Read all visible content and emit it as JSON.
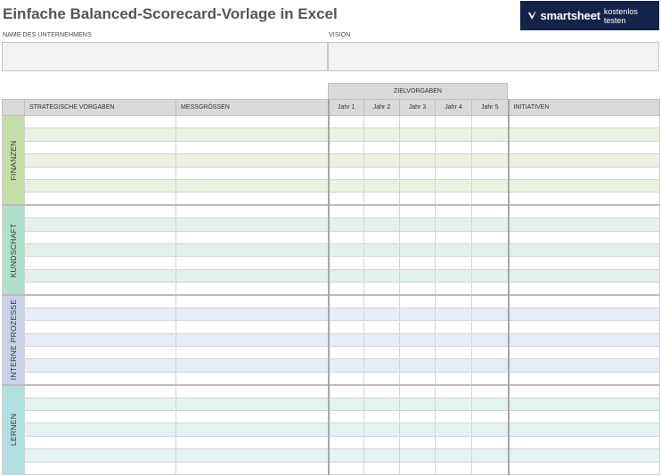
{
  "title": "Einfache Balanced-Scorecard-Vorlage in Excel",
  "banner": {
    "brand": "smartsheet",
    "cta": "kostenlos testen",
    "bg_color": "#13234a",
    "icon": "smartsheet-check-icon"
  },
  "fields": {
    "company_label": "NAME DES UNTERNEHMENS",
    "vision_label": "VISION",
    "company_value": "",
    "vision_value": ""
  },
  "table": {
    "group_header": "ZIELVORGABEN",
    "columns": {
      "strategic": "STRATEGISCHE VORGABEN",
      "measures": "MESSGRÖSSEN",
      "years": [
        "Jahr 1",
        "Jahr 2",
        "Jahr 3",
        "Jahr 4",
        "Jahr 5"
      ],
      "initiatives": "INITIATIVEN"
    },
    "categories": [
      {
        "key": "fin",
        "label": "FINANZEN",
        "color": "#c5dea7",
        "rows": 7
      },
      {
        "key": "kun",
        "label": "KUNDSCHAFT",
        "color": "#afe0cc",
        "rows": 7
      },
      {
        "key": "int",
        "label": "INTERNE PROZESSE",
        "color": "#c9d2ea",
        "rows": 7
      },
      {
        "key": "ler",
        "label": "LERNEN",
        "color": "#b0e0e0",
        "rows": 7
      }
    ]
  }
}
